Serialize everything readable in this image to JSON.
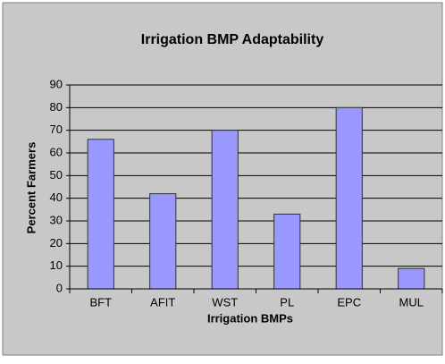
{
  "chart_data": {
    "type": "bar",
    "title": "Irrigation BMP Adaptability",
    "x_label": "Irrigation BMPs",
    "y_label": "Percent Farmers",
    "categories": [
      "BFT",
      "AFIT",
      "WST",
      "PL",
      "EPC",
      "MUL"
    ],
    "values": [
      66,
      42,
      70,
      33,
      80,
      9
    ],
    "color": "#9999ff",
    "ylim": [
      0,
      90
    ],
    "yticks": [
      0,
      10,
      20,
      30,
      40,
      50,
      60,
      70,
      80,
      90
    ],
    "grid": true
  }
}
